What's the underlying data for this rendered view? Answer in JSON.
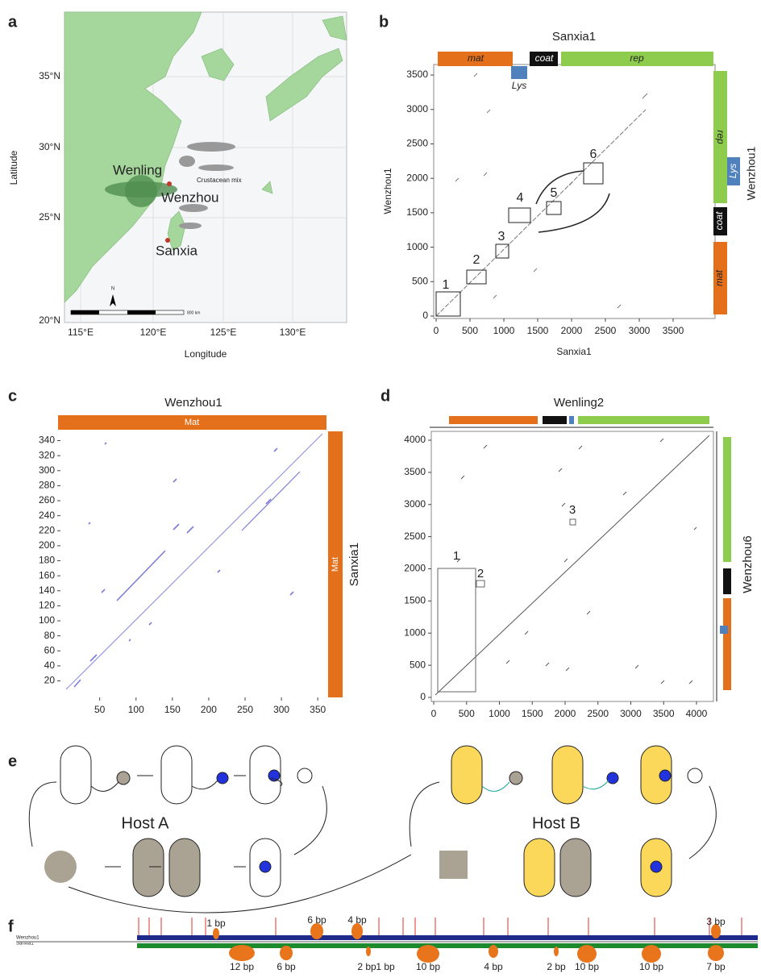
{
  "panels": {
    "a": {
      "label": "a",
      "x_label": "Longitude",
      "y_label": "Latitude",
      "xticks": [
        "115°E",
        "120°E",
        "125°E",
        "130°E"
      ],
      "yticks": [
        "35°N",
        "30°N",
        "25°N",
        "20°N"
      ],
      "places": [
        "Wenling",
        "Wenzhou",
        "Sanxia"
      ],
      "annotation": "Crustacean mix",
      "scale": "800 km",
      "north": "N"
    },
    "b": {
      "label": "b",
      "title": "Sanxia1",
      "x_label": "Sanxia1",
      "y_label": "Wenzhou1",
      "right_title": "Wenzhou1",
      "xlim": [
        -36,
        4119
      ],
      "ylim": [
        -35,
        3653
      ],
      "xticks": [
        0,
        500,
        1000,
        1500,
        2000,
        2500,
        3000,
        3500
      ],
      "yticks": [
        0,
        500,
        1000,
        1500,
        2000,
        2500,
        3000,
        3500
      ],
      "top_genes": [
        "mat",
        "coat",
        "rep",
        "Lys"
      ],
      "right_genes": [
        "rep",
        "Lys",
        "coat",
        "mat"
      ],
      "boxes": [
        1,
        2,
        3,
        4,
        5,
        6
      ]
    },
    "c": {
      "label": "c",
      "title": "Wenzhou1",
      "right_title": "Sanxia1",
      "top_gene": "Mat",
      "right_gene": "Mat",
      "xlim": [
        -4,
        362
      ],
      "ylim": [
        -2,
        347
      ],
      "xticks": [
        50,
        100,
        150,
        200,
        250,
        300,
        350
      ],
      "yticks": [
        20,
        40,
        60,
        80,
        100,
        120,
        140,
        160,
        180,
        200,
        220,
        240,
        260,
        280,
        300,
        320,
        340
      ]
    },
    "d": {
      "label": "d",
      "title": "Wenling2",
      "right_title": "Wenzhou6",
      "xlim": [
        -37,
        4258
      ],
      "ylim": [
        -63,
        4138
      ],
      "xticks": [
        0,
        500,
        1000,
        1500,
        2000,
        2500,
        3000,
        3500,
        4000
      ],
      "yticks": [
        0,
        500,
        1000,
        1500,
        2000,
        2500,
        3000,
        3500,
        4000
      ],
      "boxes": [
        1,
        2,
        3
      ]
    },
    "e": {
      "label": "e",
      "hosts": [
        "Host A",
        "Host B"
      ]
    },
    "f": {
      "label": "f",
      "rows": [
        "Wenzhou1",
        "Sanxia1"
      ],
      "top_gaps": [
        "1 bp",
        "6 bp",
        "4 bp",
        "3 bp"
      ],
      "bottom_gaps": [
        "12 bp",
        "6 bp",
        "2 bp",
        "1 bp",
        "10 bp",
        "4 bp",
        "2 bp",
        "10 bp",
        "10 bp",
        "7 bp"
      ]
    }
  }
}
